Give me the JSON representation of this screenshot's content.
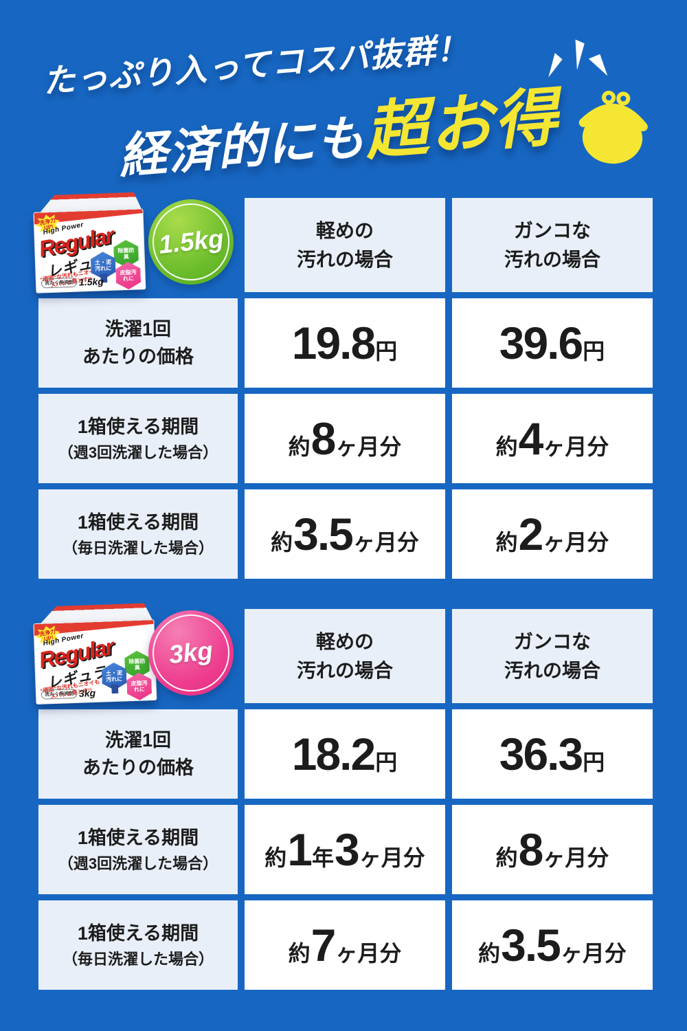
{
  "page": {
    "background_color": "#1767c2",
    "accent_yellow": "#f4e633",
    "cell_light_color": "#e9eff8",
    "cell_white_color": "#ffffff"
  },
  "header": {
    "line1": "たっぷり入ってコスパ抜群！",
    "line2_white": "経済的にも",
    "line2_yellow": "超お得",
    "purse_icon": "coin-purse-icon",
    "purse_color": "#f4e633"
  },
  "product": {
    "burst": "洗浄力UP!",
    "brand_small": "High Power",
    "brand_en": "Regular",
    "brand_jp": "レギュラー",
    "tagline": "“頑固”な汚れもニオイもスパッと落とす!!",
    "category": "洗たく用洗剤",
    "hex_badges": [
      {
        "label": "除菌防臭",
        "color": "#3fae2e"
      },
      {
        "label": "土・泥汚れに",
        "color": "#2f6fc8"
      },
      {
        "label": "皮脂汚れに",
        "color": "#ee3d8f"
      }
    ]
  },
  "tables": [
    {
      "size": "1.5kg",
      "badge_color": "#6cbd2c",
      "columns": [
        {
          "line1": "軽めの",
          "line2": "汚れの場合"
        },
        {
          "line1": "ガンコな",
          "line2": "汚れの場合"
        }
      ],
      "rows": [
        {
          "label1": "洗濯1回",
          "label2": "あたりの価格",
          "values": [
            [
              {
                "t": "19.8",
                "big": true
              },
              {
                "t": "円"
              }
            ],
            [
              {
                "t": "39.6",
                "big": true
              },
              {
                "t": "円"
              }
            ]
          ]
        },
        {
          "label1": "1箱使える期間",
          "label2": "（週3回洗濯した場合）",
          "values": [
            [
              {
                "t": "約"
              },
              {
                "t": "8",
                "big": true
              },
              {
                "t": "ヶ月分"
              }
            ],
            [
              {
                "t": "約"
              },
              {
                "t": "4",
                "big": true
              },
              {
                "t": "ヶ月分"
              }
            ]
          ]
        },
        {
          "label1": "1箱使える期間",
          "label2": "（毎日洗濯した場合）",
          "values": [
            [
              {
                "t": "約"
              },
              {
                "t": "3.5",
                "big": true
              },
              {
                "t": "ヶ月分"
              }
            ],
            [
              {
                "t": "約"
              },
              {
                "t": "2",
                "big": true
              },
              {
                "t": "ヶ月分"
              }
            ]
          ]
        }
      ]
    },
    {
      "size": "3kg",
      "badge_color": "#ee3d8f",
      "columns": [
        {
          "line1": "軽めの",
          "line2": "汚れの場合"
        },
        {
          "line1": "ガンコな",
          "line2": "汚れの場合"
        }
      ],
      "rows": [
        {
          "label1": "洗濯1回",
          "label2": "あたりの価格",
          "values": [
            [
              {
                "t": "18.2",
                "big": true
              },
              {
                "t": "円"
              }
            ],
            [
              {
                "t": "36.3",
                "big": true
              },
              {
                "t": "円"
              }
            ]
          ]
        },
        {
          "label1": "1箱使える期間",
          "label2": "（週3回洗濯した場合）",
          "values": [
            [
              {
                "t": "約"
              },
              {
                "t": "1",
                "big": true
              },
              {
                "t": "年"
              },
              {
                "t": "3",
                "big": true
              },
              {
                "t": "ヶ月分"
              }
            ],
            [
              {
                "t": "約"
              },
              {
                "t": "8",
                "big": true
              },
              {
                "t": "ヶ月分"
              }
            ]
          ]
        },
        {
          "label1": "1箱使える期間",
          "label2": "（毎日洗濯した場合）",
          "values": [
            [
              {
                "t": "約"
              },
              {
                "t": "7",
                "big": true
              },
              {
                "t": "ヶ月分"
              }
            ],
            [
              {
                "t": "約"
              },
              {
                "t": "3.5",
                "big": true
              },
              {
                "t": "ヶ月分"
              }
            ]
          ]
        }
      ]
    }
  ],
  "chart_data": [
    {
      "type": "table",
      "title": "1.5kg",
      "columns": [
        "",
        "軽めの汚れの場合",
        "ガンコな汚れの場合"
      ],
      "rows": [
        [
          "洗濯1回あたりの価格",
          "19.8円",
          "39.6円"
        ],
        [
          "1箱使える期間（週3回洗濯した場合）",
          "約8ヶ月分",
          "約4ヶ月分"
        ],
        [
          "1箱使える期間（毎日洗濯した場合）",
          "約3.5ヶ月分",
          "約2ヶ月分"
        ]
      ]
    },
    {
      "type": "table",
      "title": "3kg",
      "columns": [
        "",
        "軽めの汚れの場合",
        "ガンコな汚れの場合"
      ],
      "rows": [
        [
          "洗濯1回あたりの価格",
          "18.2円",
          "36.3円"
        ],
        [
          "1箱使える期間（週3回洗濯した場合）",
          "約1年3ヶ月分",
          "約8ヶ月分"
        ],
        [
          "1箱使える期間（毎日洗濯した場合）",
          "約7ヶ月分",
          "約3.5ヶ月分"
        ]
      ]
    }
  ]
}
